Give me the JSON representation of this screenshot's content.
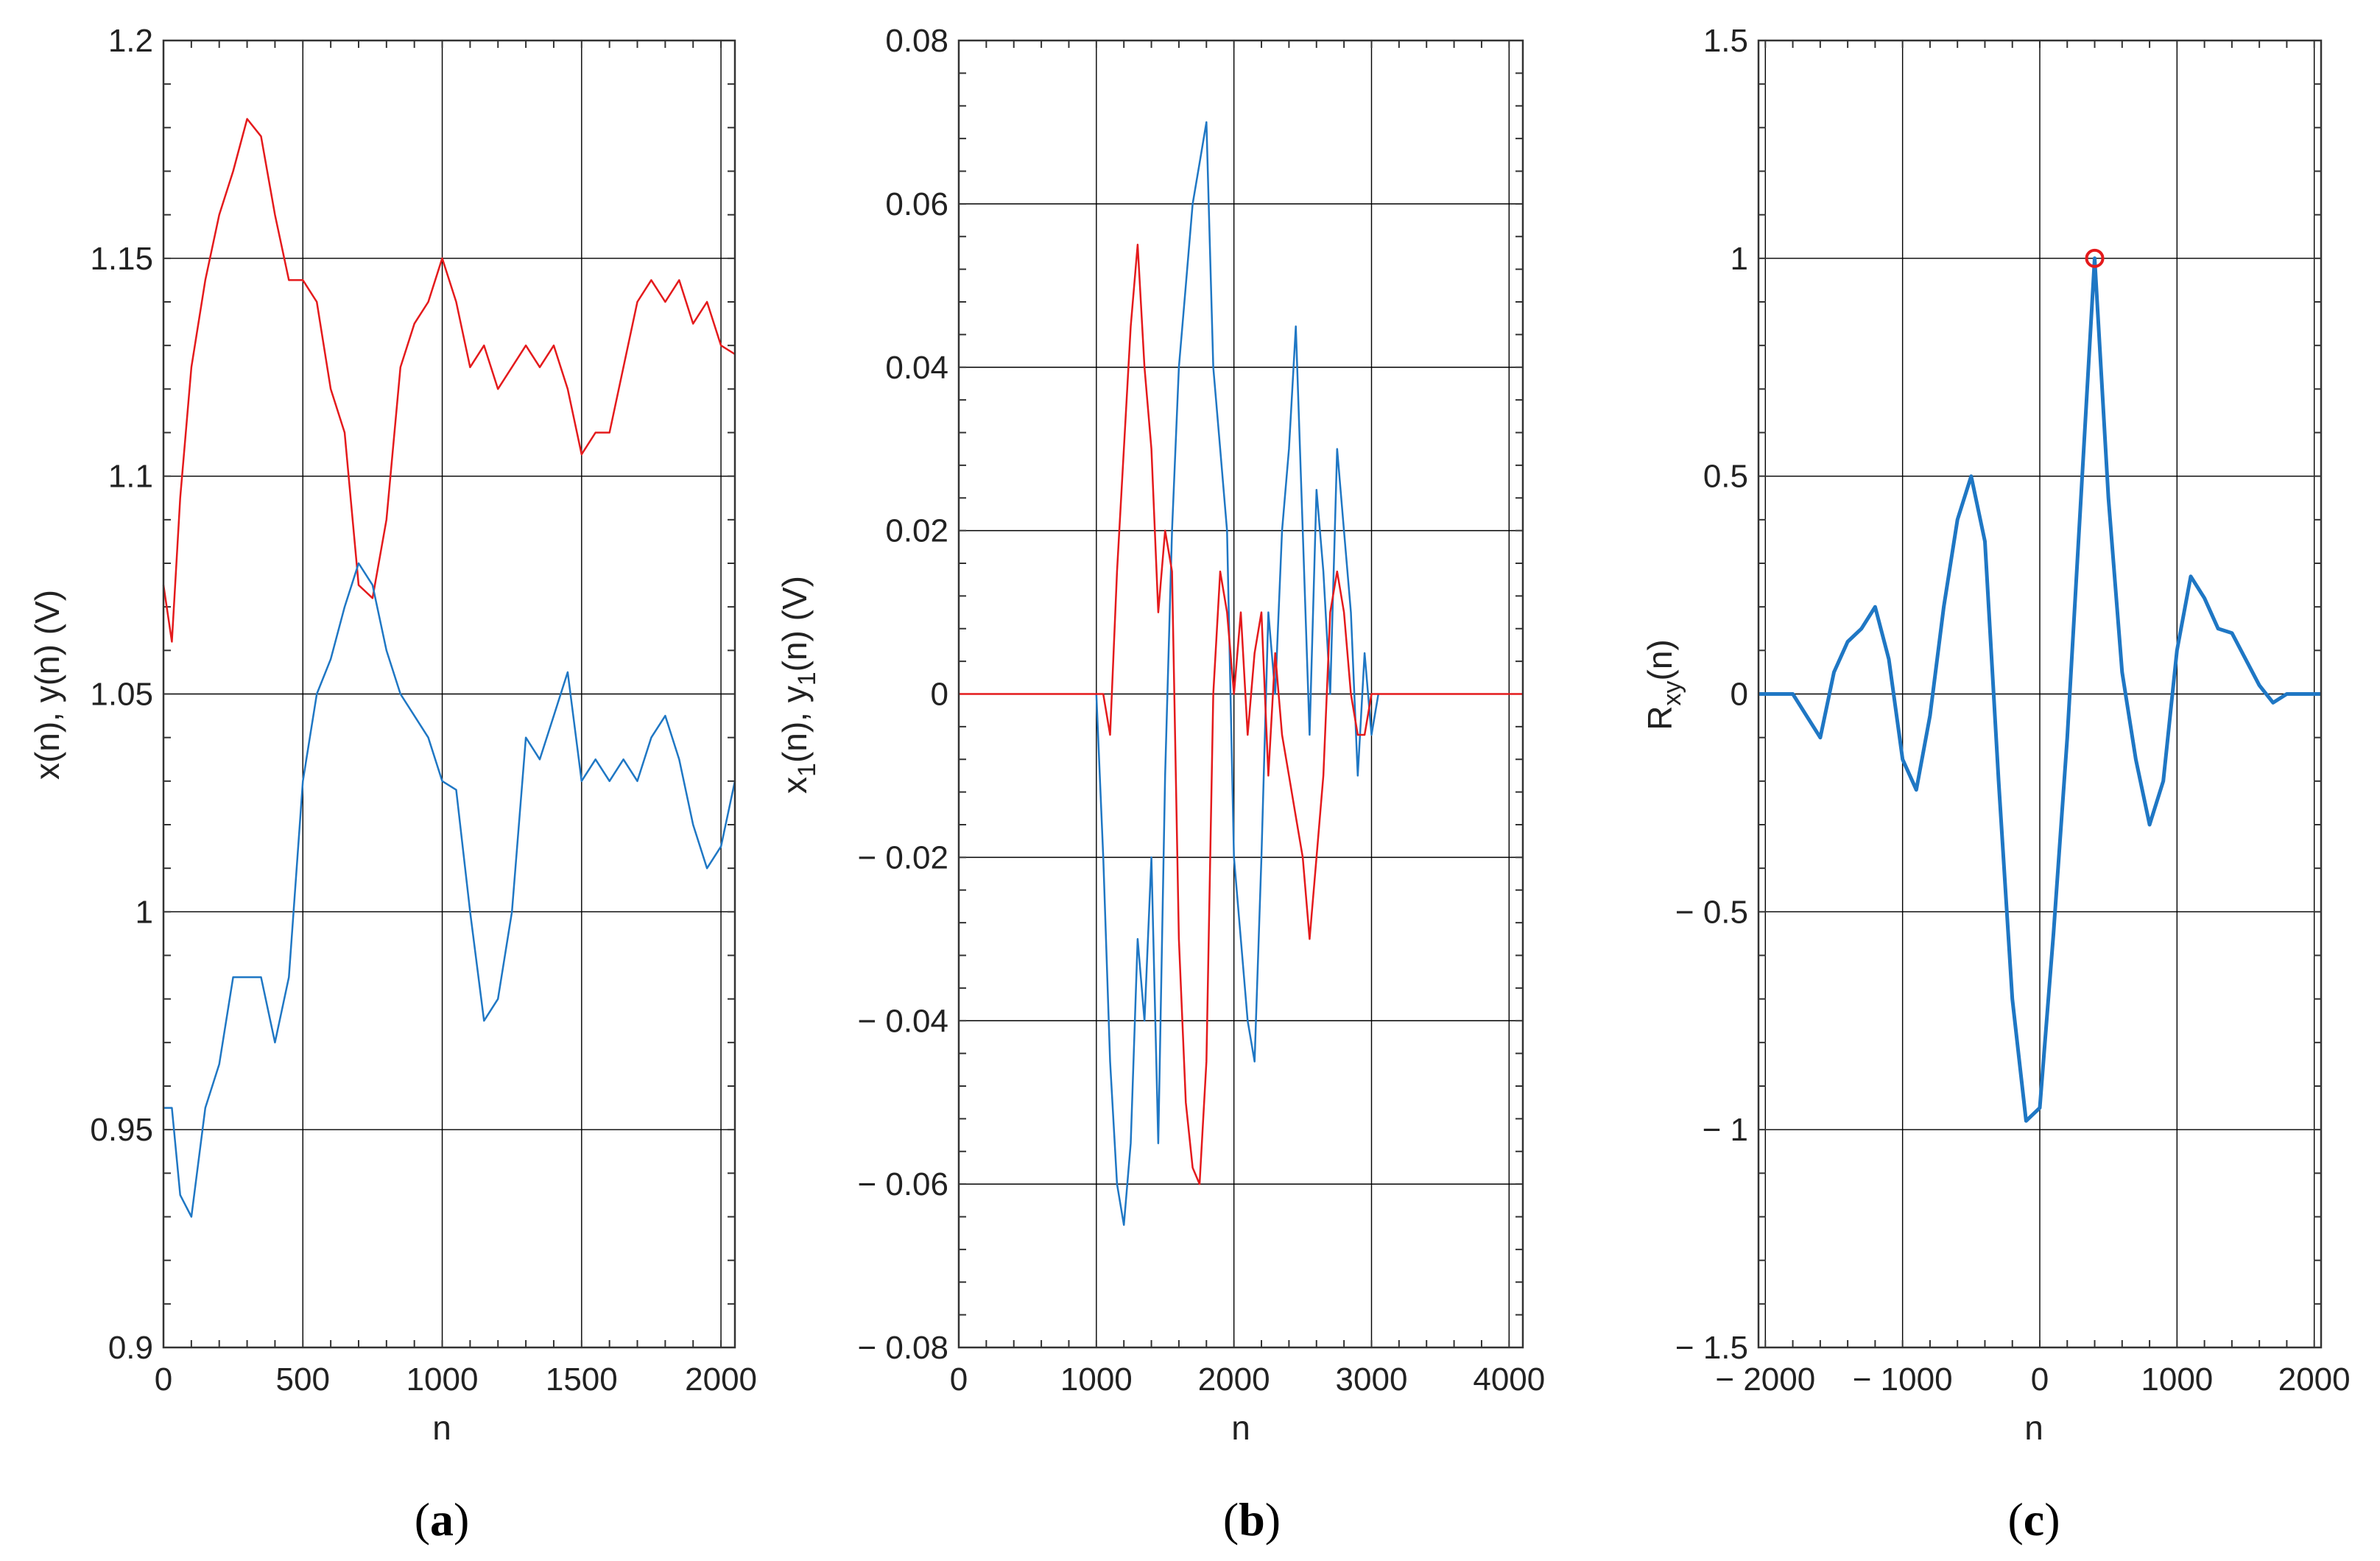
{
  "chart_data": [
    {
      "type": "line",
      "panel_label": {
        "open": "(",
        "letter": "a",
        "close": ")"
      },
      "xlabel": "n",
      "ylabel": "x(n), y(n) (V)",
      "xlim": [
        0,
        2050
      ],
      "ylim": [
        0.9,
        1.2
      ],
      "xticks": [
        0,
        500,
        1000,
        1500,
        2000
      ],
      "xtick_labels": [
        "0",
        "500",
        "1000",
        "1500",
        "2000"
      ],
      "yticks": [
        0.9,
        0.95,
        1,
        1.05,
        1.1,
        1.15,
        1.2
      ],
      "ytick_labels": [
        "0.9",
        "0.95",
        "1",
        "1.05",
        "1.1",
        "1.15",
        "1.2"
      ],
      "grid": true,
      "series": [
        {
          "name": "x(n)",
          "color": "#e41a1c",
          "x": [
            0,
            30,
            60,
            100,
            150,
            200,
            250,
            300,
            350,
            400,
            450,
            500,
            550,
            600,
            650,
            700,
            750,
            800,
            850,
            900,
            950,
            1000,
            1050,
            1100,
            1150,
            1200,
            1250,
            1300,
            1350,
            1400,
            1450,
            1500,
            1550,
            1600,
            1650,
            1700,
            1750,
            1800,
            1850,
            1900,
            1950,
            2000,
            2050
          ],
          "y": [
            1.075,
            1.062,
            1.095,
            1.125,
            1.145,
            1.16,
            1.17,
            1.182,
            1.178,
            1.16,
            1.145,
            1.145,
            1.14,
            1.12,
            1.11,
            1.075,
            1.072,
            1.09,
            1.125,
            1.135,
            1.14,
            1.15,
            1.14,
            1.125,
            1.13,
            1.12,
            1.125,
            1.13,
            1.125,
            1.13,
            1.12,
            1.105,
            1.11,
            1.11,
            1.125,
            1.14,
            1.145,
            1.14,
            1.145,
            1.135,
            1.14,
            1.13,
            1.128
          ]
        },
        {
          "name": "y(n)",
          "color": "#1f77c4",
          "x": [
            0,
            30,
            60,
            100,
            150,
            200,
            250,
            300,
            350,
            400,
            450,
            500,
            550,
            600,
            650,
            700,
            750,
            800,
            850,
            900,
            950,
            1000,
            1050,
            1100,
            1150,
            1200,
            1250,
            1300,
            1350,
            1400,
            1450,
            1500,
            1550,
            1600,
            1650,
            1700,
            1750,
            1800,
            1850,
            1900,
            1950,
            2000,
            2050
          ],
          "y": [
            0.955,
            0.955,
            0.935,
            0.93,
            0.955,
            0.965,
            0.985,
            0.985,
            0.985,
            0.97,
            0.985,
            1.03,
            1.05,
            1.058,
            1.07,
            1.08,
            1.075,
            1.06,
            1.05,
            1.045,
            1.04,
            1.03,
            1.028,
            1.0,
            0.975,
            0.98,
            1.0,
            1.04,
            1.035,
            1.045,
            1.055,
            1.03,
            1.035,
            1.03,
            1.035,
            1.03,
            1.04,
            1.045,
            1.035,
            1.02,
            1.01,
            1.015,
            1.03
          ]
        }
      ]
    },
    {
      "type": "line",
      "panel_label": {
        "open": "(",
        "letter": "b",
        "close": ")"
      },
      "xlabel": "n",
      "ylabel_base": "x",
      "ylabel_sub": "1",
      "ylabel_mid": "(n), y",
      "ylabel_sub2": "1",
      "ylabel_end": "(n) (V)",
      "xlim": [
        0,
        4100
      ],
      "ylim": [
        -0.08,
        0.08
      ],
      "xticks": [
        0,
        1000,
        2000,
        3000,
        4000
      ],
      "xtick_labels": [
        "0",
        "1000",
        "2000",
        "3000",
        "4000"
      ],
      "yticks": [
        -0.08,
        -0.06,
        -0.04,
        -0.02,
        0,
        0.02,
        0.04,
        0.06,
        0.08
      ],
      "ytick_labels": [
        "− 0.08",
        "− 0.06",
        "− 0.04",
        "− 0.02",
        "0",
        "0.02",
        "0.04",
        "0.06",
        "0.08"
      ],
      "grid": true,
      "series": [
        {
          "name": "y1(n)",
          "color": "#1f77c4",
          "x": [
            1000,
            1050,
            1100,
            1150,
            1200,
            1250,
            1300,
            1350,
            1400,
            1450,
            1500,
            1550,
            1600,
            1650,
            1700,
            1750,
            1800,
            1850,
            1900,
            1950,
            2000,
            2050,
            2100,
            2150,
            2200,
            2250,
            2300,
            2350,
            2400,
            2450,
            2500,
            2550,
            2600,
            2650,
            2700,
            2750,
            2800,
            2850,
            2900,
            2950,
            3000,
            3050
          ],
          "y": [
            0,
            -0.02,
            -0.045,
            -0.06,
            -0.065,
            -0.055,
            -0.03,
            -0.04,
            -0.02,
            -0.055,
            -0.01,
            0.02,
            0.04,
            0.05,
            0.06,
            0.065,
            0.07,
            0.04,
            0.03,
            0.02,
            -0.02,
            -0.03,
            -0.04,
            -0.045,
            -0.02,
            0.01,
            0.0,
            0.02,
            0.03,
            0.045,
            0.02,
            -0.005,
            0.025,
            0.015,
            0.0,
            0.03,
            0.02,
            0.01,
            -0.01,
            0.005,
            -0.005,
            0.0
          ]
        },
        {
          "name": "x1(n)",
          "color": "#e41a1c",
          "x": [
            0,
            1000,
            1050,
            1100,
            1150,
            1200,
            1250,
            1300,
            1350,
            1400,
            1450,
            1500,
            1550,
            1600,
            1650,
            1700,
            1750,
            1800,
            1850,
            1900,
            1950,
            2000,
            2050,
            2100,
            2150,
            2200,
            2250,
            2300,
            2350,
            2400,
            2450,
            2500,
            2550,
            2600,
            2650,
            2700,
            2750,
            2800,
            2850,
            2900,
            2950,
            3000,
            3050,
            4100
          ],
          "y": [
            0,
            0,
            0,
            -0.005,
            0.015,
            0.03,
            0.045,
            0.055,
            0.04,
            0.03,
            0.01,
            0.02,
            0.015,
            -0.03,
            -0.05,
            -0.058,
            -0.06,
            -0.045,
            0.0,
            0.015,
            0.01,
            0.0,
            0.01,
            -0.005,
            0.005,
            0.01,
            -0.01,
            0.005,
            -0.005,
            -0.01,
            -0.015,
            -0.02,
            -0.03,
            -0.02,
            -0.01,
            0.01,
            0.015,
            0.01,
            0.0,
            -0.005,
            -0.005,
            0.0,
            0,
            0
          ]
        }
      ]
    },
    {
      "type": "line",
      "panel_label": {
        "open": "(",
        "letter": "c",
        "close": ")"
      },
      "xlabel": "n",
      "ylabel_base": "R",
      "ylabel_sub": "xy",
      "ylabel_end": "(n)",
      "xlim": [
        -2050,
        2050
      ],
      "ylim": [
        -1.5,
        1.5
      ],
      "xticks": [
        -2000,
        -1000,
        0,
        1000,
        2000
      ],
      "xtick_labels": [
        "− 2000",
        "− 1000",
        "0",
        "1000",
        "2000"
      ],
      "yticks": [
        -1.5,
        -1,
        -0.5,
        0,
        0.5,
        1,
        1.5
      ],
      "ytick_labels": [
        "− 1.5",
        "− 1",
        "− 0.5",
        "0",
        "0.5",
        "1",
        "1.5"
      ],
      "grid": true,
      "peak": {
        "x": 400,
        "y": 1.0,
        "color": "#e41a1c"
      },
      "series": [
        {
          "name": "Rxy(n)",
          "color": "#1f77c4",
          "x": [
            -2050,
            -1800,
            -1700,
            -1600,
            -1500,
            -1400,
            -1300,
            -1200,
            -1100,
            -1000,
            -900,
            -800,
            -700,
            -600,
            -500,
            -400,
            -300,
            -200,
            -100,
            0,
            100,
            200,
            300,
            400,
            500,
            600,
            700,
            800,
            900,
            1000,
            1100,
            1200,
            1300,
            1400,
            1500,
            1600,
            1700,
            1800,
            2050
          ],
          "y": [
            0,
            0,
            -0.05,
            -0.1,
            0.05,
            0.12,
            0.15,
            0.2,
            0.08,
            -0.15,
            -0.22,
            -0.05,
            0.2,
            0.4,
            0.5,
            0.35,
            -0.2,
            -0.7,
            -0.98,
            -0.95,
            -0.55,
            -0.1,
            0.45,
            1.0,
            0.45,
            0.05,
            -0.15,
            -0.3,
            -0.2,
            0.1,
            0.27,
            0.22,
            0.15,
            0.14,
            0.08,
            0.02,
            -0.02,
            0,
            0
          ]
        }
      ]
    }
  ]
}
